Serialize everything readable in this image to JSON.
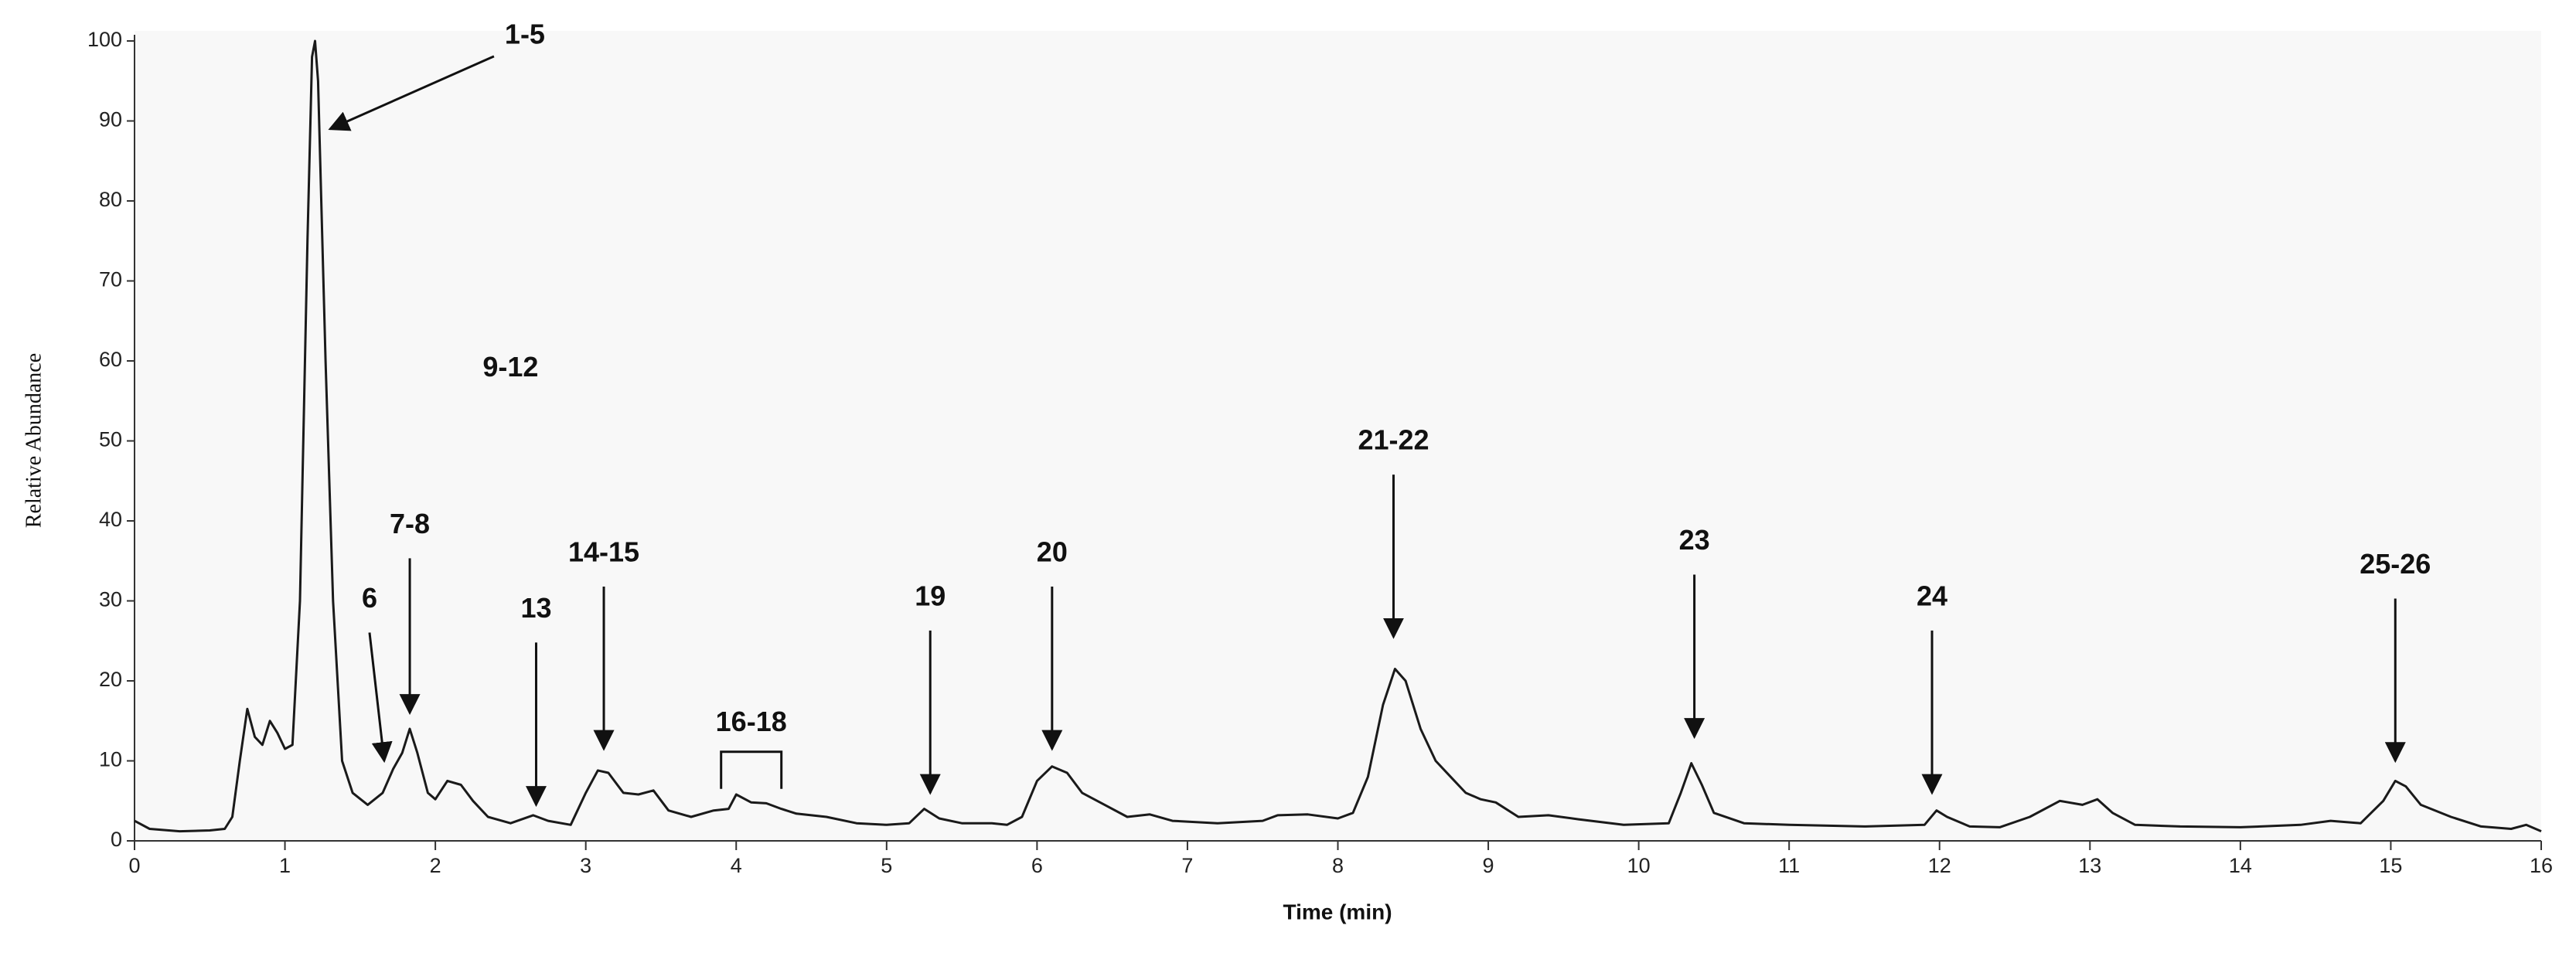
{
  "chart_data": {
    "type": "line",
    "xlabel": "Time (min)",
    "ylabel": "Relative Abundance",
    "color": "#1a1a1a",
    "xlim": [
      0,
      16
    ],
    "ylim": [
      0,
      100
    ],
    "xticks": [
      0,
      1,
      2,
      3,
      4,
      5,
      6,
      7,
      8,
      9,
      10,
      11,
      12,
      13,
      14,
      15,
      16
    ],
    "yticks": [
      0,
      10,
      20,
      30,
      40,
      50,
      60,
      70,
      80,
      90,
      100
    ],
    "x": [
      0,
      0.1,
      0.3,
      0.5,
      0.6,
      0.65,
      0.7,
      0.75,
      0.8,
      0.85,
      0.9,
      0.95,
      1.0,
      1.05,
      1.1,
      1.15,
      1.18,
      1.2,
      1.22,
      1.27,
      1.32,
      1.38,
      1.45,
      1.55,
      1.65,
      1.72,
      1.78,
      1.83,
      1.88,
      1.95,
      2.0,
      2.08,
      2.17,
      2.25,
      2.35,
      2.5,
      2.65,
      2.75,
      2.9,
      3.0,
      3.08,
      3.15,
      3.25,
      3.35,
      3.45,
      3.55,
      3.7,
      3.85,
      3.95,
      4.0,
      4.1,
      4.2,
      4.3,
      4.4,
      4.6,
      4.8,
      5.0,
      5.15,
      5.25,
      5.35,
      5.5,
      5.7,
      5.8,
      5.9,
      6.0,
      6.1,
      6.2,
      6.3,
      6.45,
      6.6,
      6.75,
      6.9,
      7.2,
      7.5,
      7.6,
      7.8,
      8.0,
      8.1,
      8.2,
      8.3,
      8.38,
      8.45,
      8.55,
      8.65,
      8.75,
      8.85,
      8.95,
      9.05,
      9.2,
      9.4,
      9.6,
      9.9,
      10.2,
      10.28,
      10.35,
      10.42,
      10.5,
      10.7,
      11,
      11.5,
      11.9,
      11.98,
      12.05,
      12.2,
      12.4,
      12.6,
      12.8,
      12.95,
      13.05,
      13.15,
      13.3,
      13.6,
      14,
      14.4,
      14.6,
      14.8,
      14.95,
      15.03,
      15.1,
      15.2,
      15.4,
      15.6,
      15.8,
      15.9,
      16
    ],
    "values": [
      2.5,
      1.5,
      1.2,
      1.3,
      1.5,
      3,
      10,
      16.5,
      13,
      12,
      15,
      13.5,
      11.5,
      12,
      30,
      75,
      98,
      100,
      95,
      60,
      30,
      10,
      6,
      4.5,
      6,
      9,
      11,
      14,
      11,
      6,
      5.2,
      7.5,
      7,
      5,
      3,
      2.2,
      3.2,
      2.5,
      2,
      6,
      8.8,
      8.5,
      6,
      5.8,
      6.3,
      3.8,
      3,
      3.8,
      4,
      5.8,
      4.8,
      4.7,
      4,
      3.4,
      3,
      2.2,
      2,
      2.2,
      4,
      2.8,
      2.2,
      2.2,
      2,
      3,
      7.5,
      9.3,
      8.5,
      6,
      4.5,
      3,
      3.3,
      2.5,
      2.2,
      2.5,
      3.2,
      3.3,
      2.8,
      3.5,
      8,
      17,
      21.5,
      20,
      14,
      10,
      8,
      6,
      5.2,
      4.8,
      3,
      3.2,
      2.7,
      2,
      2.2,
      6,
      9.7,
      7,
      3.5,
      2.2,
      2,
      1.8,
      2,
      3.8,
      3,
      1.8,
      1.7,
      3,
      5,
      4.5,
      5.2,
      3.5,
      2,
      1.8,
      1.7,
      2,
      2.5,
      2.2,
      5,
      7.5,
      6.8,
      4.5,
      3,
      1.8,
      1.5,
      2,
      1.2
    ],
    "annotations": [
      {
        "text": "1-5",
        "x": 1.3,
        "y": 89,
        "marker": "arrow"
      },
      {
        "text": "6",
        "x": 1.66,
        "y": 10,
        "marker": "arrow"
      },
      {
        "text": "7-8",
        "x": 1.83,
        "y": 16,
        "marker": "arrow"
      },
      {
        "text": "9-12",
        "x": 2.5,
        "y": 59,
        "marker": "none"
      },
      {
        "text": "13",
        "x": 2.67,
        "y": 4.5,
        "marker": "arrow"
      },
      {
        "text": "14-15",
        "x": 3.12,
        "y": 11.5,
        "marker": "arrow"
      },
      {
        "text": "16-18",
        "x": 4.1,
        "y": 6.5,
        "marker": "bracket"
      },
      {
        "text": "19",
        "x": 5.29,
        "y": 6,
        "marker": "arrow"
      },
      {
        "text": "20",
        "x": 6.1,
        "y": 11.5,
        "marker": "arrow"
      },
      {
        "text": "21-22",
        "x": 8.37,
        "y": 25.5,
        "marker": "arrow"
      },
      {
        "text": "23",
        "x": 10.37,
        "y": 13,
        "marker": "arrow"
      },
      {
        "text": "24",
        "x": 11.95,
        "y": 6,
        "marker": "arrow"
      },
      {
        "text": "25-26",
        "x": 15.03,
        "y": 10,
        "marker": "arrow"
      }
    ]
  }
}
